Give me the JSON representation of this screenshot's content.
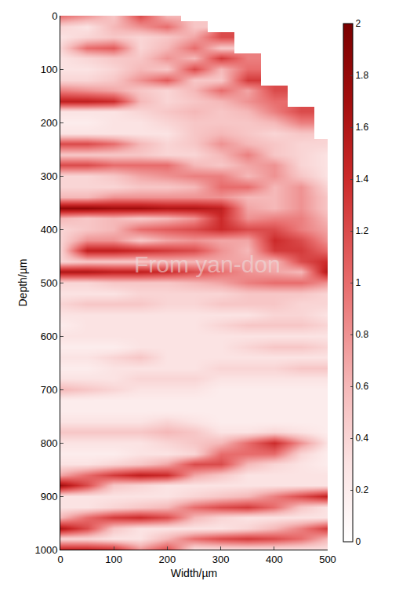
{
  "chart_data": {
    "type": "heatmap",
    "x_label": "Width/µm",
    "y_label": "Depth/µm",
    "xlim": [
      0,
      500
    ],
    "ylim": [
      1000,
      0
    ],
    "xticks": [
      0,
      100,
      200,
      300,
      400,
      500
    ],
    "yticks": [
      0,
      100,
      200,
      300,
      400,
      500,
      600,
      700,
      800,
      900,
      1000
    ],
    "colorbar_range": [
      0,
      2
    ],
    "colorbar_ticks": [
      0,
      0.2,
      0.4,
      0.6,
      0.8,
      1,
      1.2,
      1.4,
      1.6,
      1.8,
      2
    ],
    "annotations": [
      {
        "text": "From yan-don"
      }
    ],
    "x": [
      0,
      50,
      100,
      150,
      200,
      250,
      300,
      350,
      400,
      450,
      500
    ],
    "y": [
      0,
      20,
      40,
      60,
      80,
      100,
      120,
      140,
      160,
      180,
      200,
      220,
      240,
      260,
      280,
      300,
      320,
      340,
      360,
      380,
      400,
      420,
      440,
      460,
      480,
      500,
      520,
      540,
      560,
      580,
      600,
      620,
      640,
      660,
      680,
      700,
      720,
      740,
      760,
      780,
      800,
      820,
      840,
      860,
      880,
      900,
      920,
      940,
      960,
      980,
      1000
    ],
    "z": [
      [
        1.0,
        0.8,
        0.5,
        1.2,
        0.6,
        null,
        null,
        null,
        null,
        null,
        null
      ],
      [
        0.4,
        0.3,
        0.6,
        0.8,
        1.0,
        0.5,
        null,
        null,
        null,
        null,
        null
      ],
      [
        0.3,
        0.4,
        0.5,
        0.4,
        0.5,
        0.7,
        1.2,
        null,
        null,
        null,
        null
      ],
      [
        0.4,
        1.0,
        1.1,
        0.4,
        0.6,
        1.0,
        0.5,
        null,
        null,
        null,
        null
      ],
      [
        0.3,
        0.4,
        0.5,
        0.5,
        0.8,
        0.6,
        1.3,
        0.9,
        null,
        null,
        null
      ],
      [
        0.3,
        0.3,
        0.4,
        0.6,
        0.5,
        1.2,
        0.6,
        1.0,
        null,
        null,
        null
      ],
      [
        0.4,
        0.4,
        0.5,
        0.8,
        1.1,
        0.5,
        0.5,
        1.3,
        null,
        null,
        null
      ],
      [
        0.9,
        0.8,
        0.7,
        0.5,
        0.4,
        0.6,
        1.0,
        0.7,
        1.2,
        null,
        null
      ],
      [
        1.5,
        1.5,
        1.4,
        0.6,
        0.4,
        0.5,
        0.6,
        0.8,
        1.0,
        null,
        null
      ],
      [
        0.3,
        0.3,
        0.3,
        0.4,
        0.5,
        0.6,
        0.5,
        0.6,
        0.9,
        1.2,
        null
      ],
      [
        0.2,
        0.2,
        0.3,
        0.3,
        0.4,
        0.5,
        0.5,
        0.5,
        0.6,
        0.9,
        null
      ],
      [
        0.3,
        0.3,
        0.3,
        0.3,
        0.3,
        0.5,
        0.6,
        0.5,
        0.4,
        0.5,
        null
      ],
      [
        1.2,
        1.2,
        1.0,
        0.6,
        0.4,
        0.5,
        0.8,
        0.6,
        0.5,
        0.4,
        0.4
      ],
      [
        0.5,
        0.5,
        0.5,
        0.5,
        0.4,
        0.4,
        0.6,
        0.9,
        0.5,
        0.4,
        0.3
      ],
      [
        1.2,
        1.2,
        1.0,
        1.0,
        1.0,
        0.6,
        0.5,
        0.7,
        0.8,
        0.4,
        0.3
      ],
      [
        0.4,
        0.4,
        0.5,
        0.7,
        0.8,
        0.9,
        0.9,
        0.6,
        0.8,
        0.5,
        0.3
      ],
      [
        0.4,
        0.4,
        0.4,
        0.5,
        0.5,
        0.6,
        1.0,
        1.0,
        0.6,
        0.8,
        0.4
      ],
      [
        0.6,
        0.6,
        0.8,
        0.8,
        0.8,
        0.8,
        0.8,
        0.6,
        0.6,
        0.8,
        0.5
      ],
      [
        1.8,
        1.8,
        1.7,
        1.7,
        1.6,
        1.6,
        1.5,
        0.7,
        0.6,
        0.8,
        0.5
      ],
      [
        0.6,
        0.5,
        0.6,
        0.5,
        0.6,
        0.8,
        1.4,
        0.8,
        0.9,
        0.9,
        0.6
      ],
      [
        0.4,
        0.5,
        0.6,
        1.0,
        1.1,
        1.2,
        1.4,
        1.2,
        1.2,
        0.9,
        0.7
      ],
      [
        0.4,
        0.8,
        0.8,
        0.5,
        0.7,
        0.8,
        0.7,
        0.7,
        1.4,
        1.2,
        0.8
      ],
      [
        0.4,
        1.5,
        1.5,
        1.4,
        1.3,
        1.2,
        0.8,
        0.6,
        1.3,
        1.3,
        1.0
      ],
      [
        0.4,
        0.5,
        0.5,
        0.5,
        0.6,
        0.6,
        0.7,
        0.7,
        0.6,
        1.2,
        1.4
      ],
      [
        1.6,
        1.6,
        1.5,
        1.5,
        1.4,
        1.2,
        1.0,
        0.8,
        0.7,
        0.6,
        1.6
      ],
      [
        0.4,
        0.4,
        0.5,
        0.5,
        0.5,
        0.6,
        0.7,
        0.9,
        1.0,
        1.0,
        0.8
      ],
      [
        0.3,
        0.3,
        0.3,
        0.4,
        0.4,
        0.4,
        0.4,
        0.5,
        0.5,
        0.5,
        0.4
      ],
      [
        0.4,
        0.5,
        0.5,
        0.5,
        0.4,
        0.4,
        0.5,
        0.5,
        0.5,
        0.4,
        0.4
      ],
      [
        0.3,
        0.3,
        0.3,
        0.3,
        0.3,
        0.3,
        0.3,
        0.3,
        0.4,
        0.4,
        0.3
      ],
      [
        0.2,
        0.3,
        0.3,
        0.3,
        0.3,
        0.3,
        0.4,
        0.5,
        0.5,
        0.5,
        0.4
      ],
      [
        0.3,
        0.3,
        0.3,
        0.3,
        0.3,
        0.3,
        0.3,
        0.3,
        0.3,
        0.3,
        0.3
      ],
      [
        0.2,
        0.2,
        0.2,
        0.3,
        0.3,
        0.3,
        0.3,
        0.4,
        0.5,
        0.5,
        0.4
      ],
      [
        0.3,
        0.3,
        0.4,
        0.5,
        0.3,
        0.3,
        0.3,
        0.3,
        0.3,
        0.3,
        0.3
      ],
      [
        0.2,
        0.2,
        0.3,
        0.3,
        0.3,
        0.3,
        0.4,
        0.4,
        0.4,
        0.5,
        0.5
      ],
      [
        0.3,
        0.3,
        0.3,
        0.4,
        0.4,
        0.4,
        0.3,
        0.3,
        0.3,
        0.3,
        0.3
      ],
      [
        0.6,
        0.5,
        0.4,
        0.3,
        0.3,
        0.3,
        0.2,
        0.2,
        0.2,
        0.2,
        0.2
      ],
      [
        0.2,
        0.2,
        0.2,
        0.2,
        0.2,
        0.2,
        0.2,
        0.2,
        0.2,
        0.2,
        0.2
      ],
      [
        0.2,
        0.2,
        0.2,
        0.2,
        0.2,
        0.2,
        0.2,
        0.2,
        0.2,
        0.2,
        0.2
      ],
      [
        0.3,
        0.3,
        0.3,
        0.3,
        0.4,
        0.3,
        0.2,
        0.2,
        0.2,
        0.2,
        0.2
      ],
      [
        0.5,
        0.5,
        0.5,
        0.5,
        0.6,
        0.5,
        0.3,
        0.3,
        0.4,
        0.3,
        0.2
      ],
      [
        0.3,
        0.3,
        0.3,
        0.3,
        0.4,
        0.5,
        0.6,
        1.0,
        1.4,
        0.8,
        0.3
      ],
      [
        0.2,
        0.2,
        0.2,
        0.3,
        0.3,
        0.4,
        1.0,
        1.0,
        1.0,
        0.4,
        0.2
      ],
      [
        0.3,
        0.3,
        0.4,
        0.5,
        0.7,
        1.2,
        1.2,
        0.6,
        0.4,
        0.3,
        0.2
      ],
      [
        0.7,
        1.0,
        1.3,
        1.5,
        1.4,
        0.7,
        0.5,
        0.3,
        0.3,
        0.3,
        0.3
      ],
      [
        1.7,
        1.2,
        0.5,
        0.4,
        0.3,
        0.3,
        0.3,
        0.3,
        0.3,
        0.3,
        0.3
      ],
      [
        0.3,
        0.3,
        0.3,
        0.3,
        0.3,
        0.4,
        0.5,
        0.6,
        0.9,
        1.2,
        1.5
      ],
      [
        0.3,
        0.3,
        0.4,
        0.5,
        0.6,
        1.0,
        1.2,
        1.3,
        1.0,
        0.5,
        0.3
      ],
      [
        0.6,
        1.0,
        1.3,
        1.4,
        1.2,
        0.6,
        0.4,
        0.3,
        0.3,
        0.3,
        0.3
      ],
      [
        1.6,
        1.2,
        0.5,
        0.3,
        0.3,
        0.3,
        0.3,
        0.4,
        0.6,
        0.9,
        1.3
      ],
      [
        0.4,
        0.4,
        0.3,
        0.3,
        0.6,
        1.0,
        1.2,
        1.3,
        1.2,
        1.0,
        0.6
      ],
      [
        1.5,
        1.5,
        1.4,
        0.8,
        1.2,
        0.3,
        0.3,
        0.3,
        0.3,
        0.3,
        0.3
      ]
    ]
  }
}
